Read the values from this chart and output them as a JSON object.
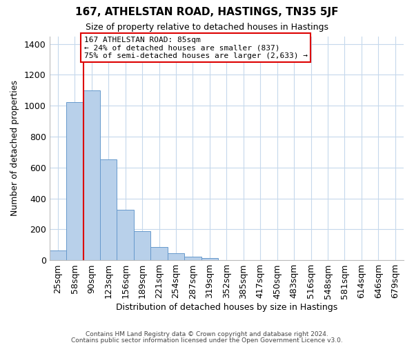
{
  "title": "167, ATHELSTAN ROAD, HASTINGS, TN35 5JF",
  "subtitle": "Size of property relative to detached houses in Hastings",
  "xlabel": "Distribution of detached houses by size in Hastings",
  "ylabel": "Number of detached properties",
  "bar_values": [
    65,
    1025,
    1100,
    655,
    325,
    190,
    85,
    47,
    22,
    15,
    0,
    0,
    0,
    0,
    0,
    0,
    0,
    0,
    0,
    0,
    0
  ],
  "bar_labels": [
    "25sqm",
    "58sqm",
    "90sqm",
    "123sqm",
    "156sqm",
    "189sqm",
    "221sqm",
    "254sqm",
    "287sqm",
    "319sqm",
    "352sqm",
    "385sqm",
    "417sqm",
    "450sqm",
    "483sqm",
    "516sqm",
    "548sqm",
    "581sqm",
    "614sqm",
    "646sqm",
    "679sqm"
  ],
  "ylim": [
    0,
    1450
  ],
  "yticks": [
    0,
    200,
    400,
    600,
    800,
    1000,
    1200,
    1400
  ],
  "bar_color": "#b8d0ea",
  "bar_edge_color": "#6699cc",
  "vline_pos": 1.5,
  "vline_color": "#dd0000",
  "annotation_text": "167 ATHELSTAN ROAD: 85sqm\n← 24% of detached houses are smaller (837)\n75% of semi-detached houses are larger (2,633) →",
  "annotation_box_color": "#ffffff",
  "annotation_box_edge": "#dd0000",
  "footer_line1": "Contains HM Land Registry data © Crown copyright and database right 2024.",
  "footer_line2": "Contains public sector information licensed under the Open Government Licence v3.0.",
  "background_color": "#ffffff",
  "grid_color": "#c5d8ec",
  "n_total_bars": 21
}
